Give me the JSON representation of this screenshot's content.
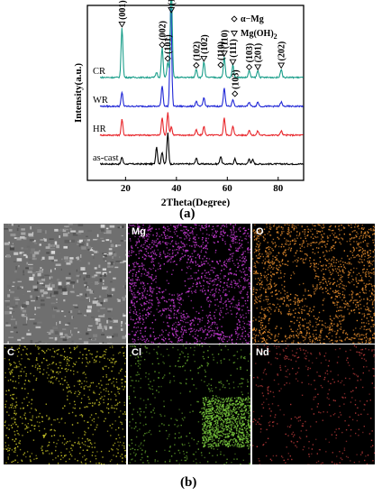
{
  "chart_data": {
    "type": "line",
    "title": "",
    "xlabel": "2Theta(Degree)",
    "ylabel": "Intensity(a.u.)",
    "xlim": [
      5,
      90
    ],
    "xticks": [
      20,
      40,
      60,
      80
    ],
    "grid": false,
    "series": [
      {
        "name": "as-cast",
        "color": "#000000",
        "offset": 0,
        "peaks": [
          [
            18.6,
            8
          ],
          [
            32.2,
            20
          ],
          [
            34.4,
            14
          ],
          [
            36.6,
            36
          ],
          [
            47.8,
            7
          ],
          [
            57.4,
            9
          ],
          [
            63.0,
            6
          ],
          [
            68.6,
            6
          ],
          [
            70.0,
            5
          ]
        ]
      },
      {
        "name": "HR",
        "color": "#e8262b",
        "offset": 1,
        "peaks": [
          [
            18.6,
            18
          ],
          [
            34.4,
            20
          ],
          [
            36.6,
            26
          ],
          [
            38.0,
            10
          ],
          [
            47.8,
            6
          ],
          [
            50.8,
            10
          ],
          [
            58.8,
            20
          ],
          [
            62.2,
            10
          ],
          [
            68.6,
            6
          ],
          [
            72.0,
            5
          ],
          [
            81.2,
            5
          ]
        ]
      },
      {
        "name": "WR",
        "color": "#2027d6",
        "offset": 2,
        "peaks": [
          [
            18.6,
            16
          ],
          [
            34.4,
            24
          ],
          [
            37.8,
            120
          ],
          [
            47.8,
            6
          ],
          [
            50.8,
            10
          ],
          [
            58.8,
            22
          ],
          [
            62.2,
            8
          ],
          [
            68.6,
            5
          ],
          [
            72.0,
            5
          ],
          [
            81.2,
            5
          ]
        ]
      },
      {
        "name": "CR",
        "color": "#1a9e8a",
        "offset": 3,
        "peaks": [
          [
            18.6,
            58
          ],
          [
            32.2,
            6
          ],
          [
            34.4,
            34
          ],
          [
            36.6,
            18
          ],
          [
            38.0,
            112
          ],
          [
            47.8,
            10
          ],
          [
            50.8,
            18
          ],
          [
            58.8,
            24
          ],
          [
            62.2,
            14
          ],
          [
            68.6,
            8
          ],
          [
            72.0,
            8
          ],
          [
            81.2,
            10
          ]
        ]
      }
    ],
    "annotations": [
      {
        "text": "(001)",
        "x": 18.6,
        "marker": "triangle",
        "series": "CR"
      },
      {
        "text": "(002)",
        "x": 34.4,
        "marker": "diamond",
        "series": "CR"
      },
      {
        "text": "(101)",
        "x": 36.6,
        "marker": "diamond",
        "series": "CR"
      },
      {
        "text": "(101)",
        "x": 38.0,
        "marker": "triangle",
        "series": "CR"
      },
      {
        "text": "(102)",
        "x": 47.8,
        "marker": "diamond",
        "series": "CR"
      },
      {
        "text": "(102)",
        "x": 50.8,
        "marker": "triangle",
        "series": "CR"
      },
      {
        "text": "(110)",
        "x": 57.4,
        "marker": "diamond",
        "series": "CR"
      },
      {
        "text": "(110)",
        "x": 58.8,
        "marker": "triangle",
        "series": "CR"
      },
      {
        "text": "(111)",
        "x": 62.2,
        "marker": "triangle",
        "series": "CR"
      },
      {
        "text": "(103)",
        "x": 63.0,
        "marker": "diamond",
        "series": "WR"
      },
      {
        "text": "(103)",
        "x": 68.6,
        "marker": "diamond",
        "series": "CR"
      },
      {
        "text": "(201)",
        "x": 72.0,
        "marker": "triangle",
        "series": "CR"
      },
      {
        "text": "(202)",
        "x": 81.2,
        "marker": "triangle",
        "series": "CR"
      }
    ],
    "legend": {
      "position": "top-right",
      "entries": [
        {
          "marker": "diamond",
          "label": "α−Mg"
        },
        {
          "marker": "triangle",
          "label": "Mg(OH)",
          "subscript": "2"
        }
      ]
    }
  },
  "caption_a": "(a)",
  "caption_b": "(b)",
  "panels": [
    {
      "id": "sem",
      "label": "",
      "type": "sem",
      "color": "#b5b5b5"
    },
    {
      "id": "mg",
      "label": "Mg",
      "type": "map",
      "color": "#c83bd6"
    },
    {
      "id": "o",
      "label": "O",
      "type": "map",
      "color": "#e28a2d"
    },
    {
      "id": "c",
      "label": "C",
      "type": "map",
      "color": "#c7c328"
    },
    {
      "id": "cl",
      "label": "Cl",
      "type": "map",
      "color": "#5f9e2a"
    },
    {
      "id": "nd",
      "label": "Nd",
      "type": "map",
      "color": "#b33838"
    }
  ]
}
